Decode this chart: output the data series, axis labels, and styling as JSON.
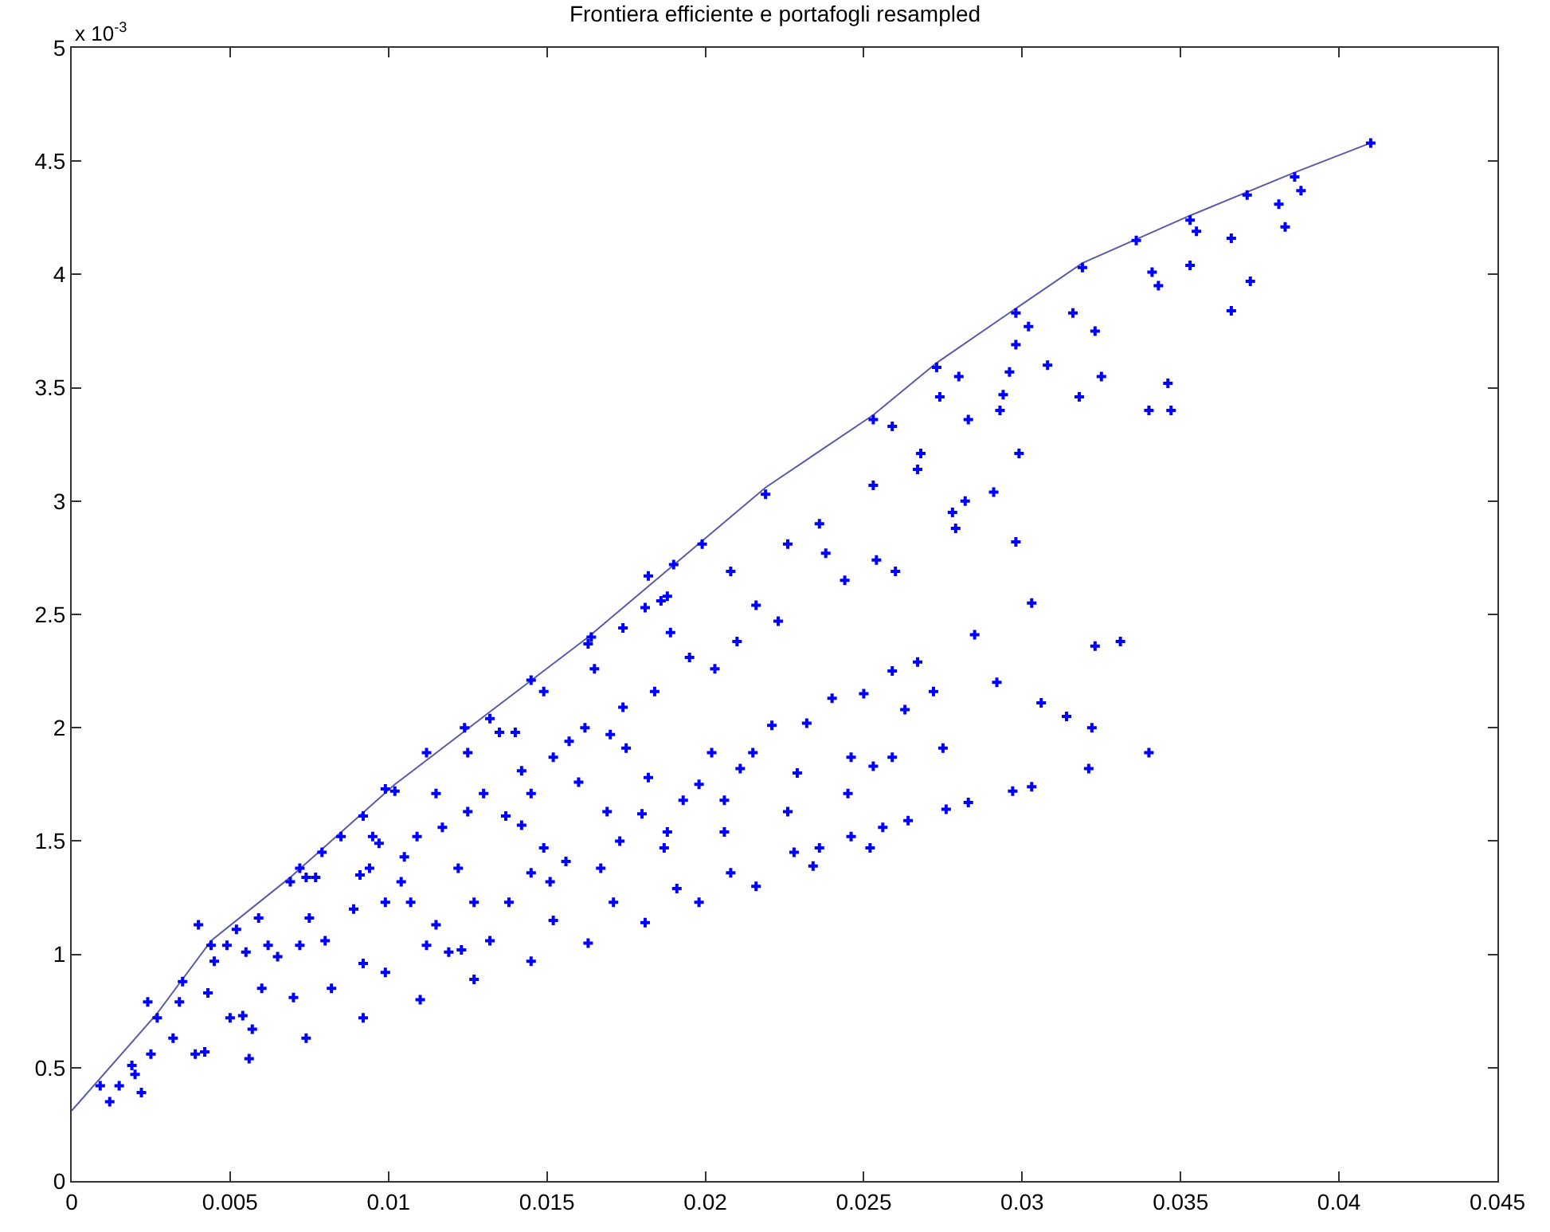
{
  "chart_data": {
    "type": "scatter",
    "title": "Frontiera efficiente e portafogli resampled",
    "annotations": [
      "x 10$^{-3}$"
    ],
    "xlim": [
      0,
      0.045
    ],
    "xticks": [
      0,
      0.005,
      0.01,
      0.015,
      0.02,
      0.025,
      0.03,
      0.035,
      0.04,
      0.045
    ],
    "ylim": [
      0,
      5
    ],
    "yticks": [
      0,
      0.5,
      1,
      1.5,
      2,
      2.5,
      3,
      3.5,
      4,
      4.5,
      5
    ],
    "grid": false,
    "series": [
      {
        "type": "line",
        "color": "#5a5aaa",
        "line_style": "solid",
        "marker": "none",
        "x": [
          0,
          0.0027,
          0.0044,
          0.0069,
          0.0102,
          0.0132,
          0.0163,
          0.0219,
          0.0253,
          0.0273,
          0.0298,
          0.0319,
          0.0353,
          0.0386,
          0.041
        ],
        "values": [
          0.31,
          0.74,
          1.06,
          1.34,
          1.75,
          2.07,
          2.4,
          3.06,
          3.38,
          3.61,
          3.85,
          4.05,
          4.26,
          4.45,
          4.58
        ]
      },
      {
        "color": "#0000ff",
        "marker": "cross",
        "x": [
          0.0027,
          0.0044,
          0.0069,
          0.0102,
          0.0132,
          0.0163,
          0.0219,
          0.0253,
          0.0273,
          0.0298,
          0.0319,
          0.0353,
          0.0386,
          0.041,
          0.0336,
          0.0371,
          0.019,
          0.0388,
          0.0381,
          0.0366,
          0.0353,
          0.0343,
          0.0323,
          0.0308,
          0.0294,
          0.0283,
          0.0268,
          0.0253,
          0.0236,
          0.0226,
          0.0189,
          0.0165,
          0.014,
          0.0115,
          0.0095,
          0.0074,
          0.0052,
          0.0034,
          0.0019,
          0.034,
          0.0321,
          0.0303,
          0.0297,
          0.0283,
          0.0276,
          0.0264,
          0.0256,
          0.0246,
          0.0236,
          0.0228,
          0.0208,
          0.0191,
          0.0171,
          0.0152,
          0.0132,
          0.0119,
          0.0099,
          0.0082,
          0.007,
          0.0054,
          0.0039,
          0.0022,
          0.0285,
          0.0323,
          0.0331,
          0.0303,
          0.0259,
          0.0267,
          0.0292,
          0.024,
          0.025,
          0.0272,
          0.0263,
          0.0314,
          0.0306,
          0.0275,
          0.0221,
          0.0232,
          0.0246,
          0.0259,
          0.0253,
          0.0229,
          0.0245,
          0.0226,
          0.0234,
          0.0252,
          0.0322,
          0.0383,
          0.0372,
          0.0366,
          0.0355,
          0.0341,
          0.0302,
          0.0298,
          0.0316,
          0.0325,
          0.0346,
          0.034,
          0.0347,
          0.0318,
          0.0296,
          0.0293,
          0.0274,
          0.028,
          0.0299,
          0.0291,
          0.0282,
          0.0278,
          0.0279,
          0.0267,
          0.0259,
          0.0298,
          0.026,
          0.0254,
          0.0238,
          0.0244,
          0.0216,
          0.0223,
          0.021,
          0.0195,
          0.0203,
          0.0184,
          0.0174,
          0.0162,
          0.017,
          0.0157,
          0.0175,
          0.0152,
          0.0142,
          0.016,
          0.0182,
          0.0198,
          0.0202,
          0.0215,
          0.0211,
          0.0206,
          0.0193,
          0.0169,
          0.018,
          0.0206,
          0.0188,
          0.0173,
          0.0187,
          0.0145,
          0.0137,
          0.013,
          0.0125,
          0.0142,
          0.0149,
          0.0156,
          0.0167,
          0.0145,
          0.0151,
          0.0138,
          0.0127,
          0.0122,
          0.0117,
          0.0109,
          0.0105,
          0.0104,
          0.0107,
          0.0115,
          0.0123,
          0.0127,
          0.0112,
          0.011,
          0.0145,
          0.0163,
          0.0181,
          0.0198,
          0.0216,
          0.0099,
          0.0094,
          0.0097,
          0.0091,
          0.0089,
          0.0092,
          0.008,
          0.0075,
          0.0077,
          0.0072,
          0.0065,
          0.0062,
          0.0092,
          0.0074,
          0.006,
          0.0057,
          0.0055,
          0.005,
          0.0056,
          0.0045,
          0.0043,
          0.0042,
          0.0032,
          0.0025,
          0.002,
          0.0015,
          0.0012,
          0.0035,
          0.0024,
          0.0009,
          0.0049,
          0.0059,
          0.0079,
          0.0085,
          0.0092,
          0.0125,
          0.0135,
          0.0149,
          0.0174,
          0.0186,
          0.004,
          0.0072,
          0.0099,
          0.0112,
          0.0124,
          0.0145,
          0.0164,
          0.0181,
          0.0199,
          0.0182,
          0.0208,
          0.0188
        ],
        "values": [
          0.72,
          1.04,
          1.32,
          1.72,
          2.04,
          2.37,
          3.03,
          3.36,
          3.59,
          3.83,
          4.03,
          4.24,
          4.43,
          4.58,
          4.15,
          4.35,
          2.72,
          4.37,
          4.31,
          4.16,
          4.04,
          3.95,
          3.75,
          3.6,
          3.47,
          3.36,
          3.21,
          3.07,
          2.9,
          2.81,
          2.42,
          2.26,
          1.98,
          1.71,
          1.52,
          1.34,
          1.11,
          0.79,
          0.51,
          1.89,
          1.82,
          1.74,
          1.72,
          1.67,
          1.64,
          1.59,
          1.56,
          1.52,
          1.47,
          1.45,
          1.36,
          1.29,
          1.23,
          1.15,
          1.06,
          1.01,
          0.92,
          0.85,
          0.81,
          0.73,
          0.56,
          0.39,
          2.41,
          2.36,
          2.38,
          2.55,
          2.25,
          2.29,
          2.2,
          2.13,
          2.15,
          2.16,
          2.08,
          2.05,
          2.11,
          1.91,
          2.01,
          2.02,
          1.87,
          1.87,
          1.83,
          1.8,
          1.71,
          1.63,
          1.39,
          1.47,
          2,
          4.21,
          3.97,
          3.84,
          4.19,
          4.01,
          3.77,
          3.69,
          3.83,
          3.55,
          3.52,
          3.4,
          3.4,
          3.46,
          3.57,
          3.4,
          3.46,
          3.55,
          3.21,
          3.04,
          3,
          2.95,
          2.88,
          3.14,
          3.33,
          2.82,
          2.69,
          2.74,
          2.77,
          2.65,
          2.54,
          2.47,
          2.38,
          2.31,
          2.26,
          2.16,
          2.09,
          2,
          1.97,
          1.94,
          1.91,
          1.87,
          1.81,
          1.76,
          1.78,
          1.75,
          1.89,
          1.89,
          1.82,
          1.68,
          1.68,
          1.63,
          1.62,
          1.54,
          1.54,
          1.5,
          1.47,
          1.71,
          1.61,
          1.71,
          1.63,
          1.57,
          1.47,
          1.41,
          1.38,
          1.36,
          1.32,
          1.23,
          1.23,
          1.38,
          1.56,
          1.52,
          1.43,
          1.32,
          1.23,
          1.13,
          1.02,
          0.89,
          1.04,
          0.8,
          0.97,
          1.05,
          1.14,
          1.23,
          1.3,
          1.23,
          1.38,
          1.49,
          1.35,
          1.2,
          0.96,
          1.06,
          1.16,
          1.34,
          1.04,
          0.99,
          1.04,
          0.72,
          0.63,
          0.85,
          0.67,
          1.01,
          0.72,
          0.54,
          0.97,
          0.83,
          0.57,
          0.63,
          0.56,
          0.47,
          0.42,
          0.35,
          0.88,
          0.79,
          0.42,
          1.04,
          1.16,
          1.45,
          1.52,
          1.61,
          1.89,
          1.98,
          2.16,
          2.44,
          2.56,
          1.13,
          1.38,
          1.73,
          1.89,
          2,
          2.21,
          2.4,
          2.53,
          2.81,
          2.67,
          2.69,
          2.58
        ]
      }
    ]
  }
}
